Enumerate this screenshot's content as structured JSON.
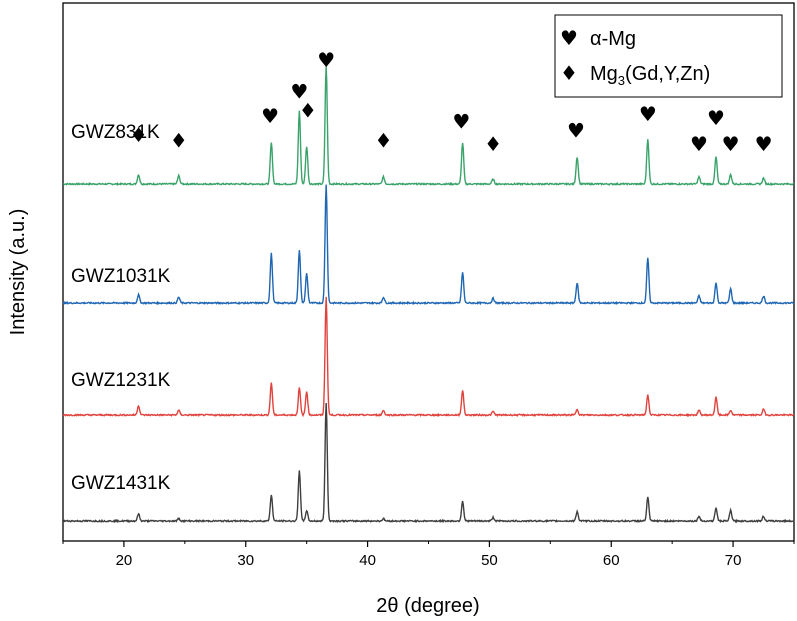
{
  "chart_data": {
    "type": "line",
    "title": "",
    "xlabel": "2θ (degree)",
    "ylabel": "Intensity (a.u.)",
    "xlim": [
      15,
      75
    ],
    "xticks": [
      20,
      30,
      40,
      50,
      60,
      70
    ],
    "xtick_labels": [
      "20",
      "30",
      "40",
      "50",
      "60",
      "70"
    ],
    "grid": false,
    "legend_position": "top-right",
    "legend": [
      {
        "symbol": "♥",
        "symbol_name": "heart-icon",
        "label_main": "α-Mg",
        "label_sub": "",
        "label_tail": ""
      },
      {
        "symbol": "♦",
        "symbol_name": "diamond-icon",
        "label_main": "Mg",
        "label_sub": "3",
        "label_tail": "(Gd,Y,Zn)"
      }
    ],
    "peaks": [
      {
        "x": 21.2,
        "phase": "Mg3(Gd,Y,Zn)"
      },
      {
        "x": 24.5,
        "phase": "Mg3(Gd,Y,Zn)"
      },
      {
        "x": 32.1,
        "phase": "α-Mg"
      },
      {
        "x": 34.4,
        "phase": "α-Mg"
      },
      {
        "x": 35.0,
        "phase": "Mg3(Gd,Y,Zn)"
      },
      {
        "x": 36.6,
        "phase": "α-Mg"
      },
      {
        "x": 41.3,
        "phase": "Mg3(Gd,Y,Zn)"
      },
      {
        "x": 47.8,
        "phase": "α-Mg"
      },
      {
        "x": 50.3,
        "phase": "Mg3(Gd,Y,Zn)"
      },
      {
        "x": 57.2,
        "phase": "α-Mg"
      },
      {
        "x": 63.0,
        "phase": "α-Mg"
      },
      {
        "x": 67.2,
        "phase": "α-Mg"
      },
      {
        "x": 68.6,
        "phase": "α-Mg"
      },
      {
        "x": 69.8,
        "phase": "α-Mg"
      },
      {
        "x": 72.5,
        "phase": "α-Mg"
      }
    ],
    "markers": [
      {
        "x": 21.2,
        "symbol": "♦",
        "level": 0.33
      },
      {
        "x": 24.5,
        "symbol": "♦",
        "level": 0.28
      },
      {
        "x": 32.0,
        "symbol": "♥",
        "level": 0.5
      },
      {
        "x": 34.4,
        "symbol": "♥",
        "level": 0.72
      },
      {
        "x": 35.1,
        "symbol": "♦",
        "level": 0.55
      },
      {
        "x": 36.6,
        "symbol": "♥",
        "level": 1.0
      },
      {
        "x": 41.3,
        "symbol": "♦",
        "level": 0.28
      },
      {
        "x": 47.7,
        "symbol": "♥",
        "level": 0.45
      },
      {
        "x": 50.3,
        "symbol": "♦",
        "level": 0.25
      },
      {
        "x": 57.1,
        "symbol": "♥",
        "level": 0.37
      },
      {
        "x": 63.0,
        "symbol": "♥",
        "level": 0.52
      },
      {
        "x": 67.2,
        "symbol": "♥",
        "level": 0.25
      },
      {
        "x": 68.6,
        "symbol": "♥",
        "level": 0.48
      },
      {
        "x": 69.8,
        "symbol": "♥",
        "level": 0.25
      },
      {
        "x": 72.5,
        "symbol": "♥",
        "level": 0.25
      }
    ],
    "series": [
      {
        "name": "GWZ831K",
        "color": "#3aa36a",
        "intensities": [
          0.08,
          0.07,
          0.35,
          0.62,
          0.32,
          1.0,
          0.06,
          0.35,
          0.04,
          0.23,
          0.38,
          0.06,
          0.23,
          0.08,
          0.05
        ]
      },
      {
        "name": "GWZ1031K",
        "color": "#1f66b3",
        "intensities": [
          0.07,
          0.05,
          0.42,
          0.45,
          0.25,
          1.0,
          0.05,
          0.26,
          0.04,
          0.17,
          0.38,
          0.06,
          0.17,
          0.12,
          0.06
        ]
      },
      {
        "name": "GWZ1231K",
        "color": "#e0433d",
        "intensities": [
          0.08,
          0.04,
          0.27,
          0.23,
          0.2,
          1.0,
          0.04,
          0.21,
          0.03,
          0.05,
          0.17,
          0.04,
          0.15,
          0.04,
          0.05
        ]
      },
      {
        "name": "GWZ1431K",
        "color": "#3f3f3f",
        "intensities": [
          0.06,
          0.02,
          0.22,
          0.43,
          0.09,
          1.0,
          0.02,
          0.17,
          0.03,
          0.08,
          0.2,
          0.04,
          0.11,
          0.09,
          0.04
        ]
      }
    ]
  }
}
